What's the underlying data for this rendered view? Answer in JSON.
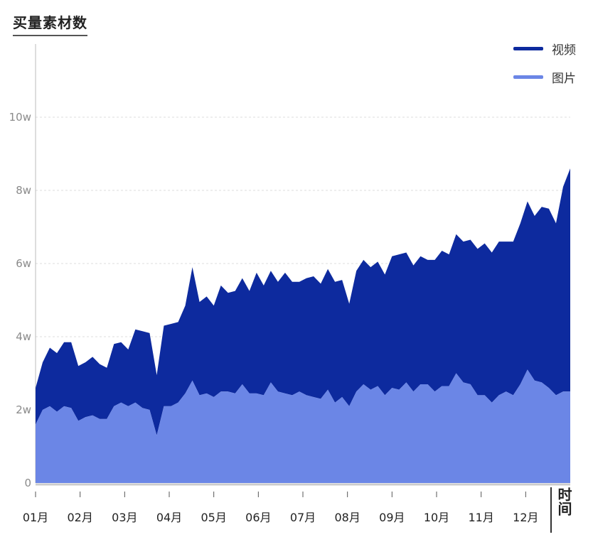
{
  "chart_data": {
    "type": "area",
    "stacked": true,
    "title": "买量素材数",
    "xlabel": "时间",
    "ylabel": "",
    "ylim": [
      0,
      100000
    ],
    "y_ticks": [
      0,
      20000,
      40000,
      60000,
      80000,
      100000
    ],
    "y_tick_labels": [
      "0",
      "2w",
      "4w",
      "6w",
      "8w",
      "10w"
    ],
    "x_tick_labels": [
      "01月",
      "02月",
      "03月",
      "04月",
      "05月",
      "06月",
      "07月",
      "08月",
      "09月",
      "10月",
      "11月",
      "12月"
    ],
    "legend_position": "top-right",
    "grid": true,
    "series": [
      {
        "name": "视频",
        "color": "#0d2a9e",
        "values": [
          10000,
          13000,
          16000,
          16000,
          17500,
          18000,
          15000,
          15000,
          16000,
          15000,
          14000,
          17000,
          16500,
          15500,
          20000,
          21000,
          21000,
          16500,
          22000,
          22500,
          22000,
          24000,
          31000,
          25500,
          26500,
          25000,
          29000,
          27000,
          28000,
          29000,
          28000,
          33000,
          30000,
          30500,
          30000,
          33000,
          31000,
          30000,
          32000,
          33000,
          31500,
          33000,
          33000,
          32000,
          28000,
          33000,
          34000,
          33500,
          34000,
          33000,
          36000,
          37000,
          35500,
          34500,
          35000,
          34000,
          36000,
          37000,
          36000,
          38000,
          38500,
          39500,
          40000,
          41500,
          41000,
          42000,
          41000,
          42000,
          44000,
          46000,
          45000,
          48000,
          49000,
          47000,
          56000,
          61000
        ]
      },
      {
        "name": "图片",
        "color": "#6b86e6",
        "values": [
          16000,
          20000,
          21000,
          19500,
          21000,
          20500,
          17000,
          18000,
          18500,
          17500,
          17500,
          21000,
          22000,
          21000,
          22000,
          20500,
          20000,
          13000,
          21000,
          21000,
          22000,
          24500,
          28000,
          24000,
          24500,
          23500,
          25000,
          25000,
          24500,
          27000,
          24500,
          24500,
          24000,
          27500,
          25000,
          24500,
          24000,
          25000,
          24000,
          23500,
          23000,
          25500,
          22000,
          23500,
          21000,
          25000,
          27000,
          25500,
          26500,
          24000,
          26000,
          25500,
          27500,
          25000,
          27000,
          27000,
          25000,
          26500,
          26500,
          30000,
          27500,
          27000,
          24000,
          24000,
          22000,
          24000,
          25000,
          24000,
          27000,
          31000,
          28000,
          27500,
          26000,
          24000,
          25000,
          25000
        ]
      }
    ]
  }
}
